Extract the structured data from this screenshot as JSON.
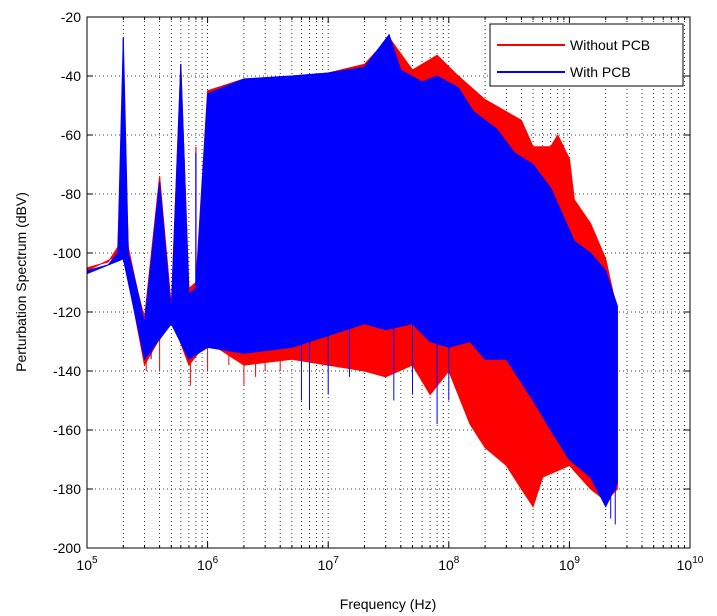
{
  "chart_data": {
    "type": "line",
    "xlabel": "Frequency (Hz)",
    "ylabel": "Perturbation Spectrum (dBV)",
    "x_scale": "log",
    "xlim": [
      100000,
      10000000000
    ],
    "ylim": [
      -200,
      -20
    ],
    "grid": true,
    "x_ticks": [
      {
        "value": 100000,
        "base": "10",
        "exp": "5"
      },
      {
        "value": 1000000,
        "base": "10",
        "exp": "6"
      },
      {
        "value": 10000000,
        "base": "10",
        "exp": "7"
      },
      {
        "value": 100000000,
        "base": "10",
        "exp": "8"
      },
      {
        "value": 1000000000,
        "base": "10",
        "exp": "9"
      },
      {
        "value": 10000000000,
        "base": "10",
        "exp": "10"
      }
    ],
    "y_ticks": [
      "-200",
      "-180",
      "-160",
      "-140",
      "-120",
      "-100",
      "-80",
      "-60",
      "-40",
      "-20"
    ],
    "legend_position": "top-right",
    "series": [
      {
        "name": "Without PCB",
        "color": "#ff0000",
        "upper": [
          [
            100000,
            -105
          ],
          [
            150000,
            -103
          ],
          [
            180000,
            -98
          ],
          [
            200000,
            -52
          ],
          [
            220000,
            -98
          ],
          [
            260000,
            -112
          ],
          [
            300000,
            -122
          ],
          [
            400000,
            -74
          ],
          [
            500000,
            -118
          ],
          [
            600000,
            -36
          ],
          [
            700000,
            -112
          ],
          [
            800000,
            -110
          ],
          [
            1000000,
            -45
          ],
          [
            2000000,
            -41
          ],
          [
            5000000,
            -40
          ],
          [
            10000000,
            -39
          ],
          [
            20000000,
            -36
          ],
          [
            32000000,
            -27
          ],
          [
            50000000,
            -38
          ],
          [
            80000000,
            -33
          ],
          [
            120000000,
            -40
          ],
          [
            200000000,
            -48
          ],
          [
            400000000,
            -55
          ],
          [
            500000000,
            -64
          ],
          [
            700000000,
            -64
          ],
          [
            800000000,
            -60
          ],
          [
            1000000000,
            -68
          ],
          [
            1100000000,
            -82
          ],
          [
            1500000000,
            -90
          ],
          [
            2000000000,
            -102
          ],
          [
            2500000000,
            -120
          ]
        ],
        "lower": [
          [
            100000,
            -106
          ],
          [
            200000,
            -100
          ],
          [
            300000,
            -138
          ],
          [
            500000,
            -122
          ],
          [
            700000,
            -138
          ],
          [
            1000000,
            -130
          ],
          [
            2000000,
            -138
          ],
          [
            5000000,
            -136
          ],
          [
            10000000,
            -138
          ],
          [
            20000000,
            -140
          ],
          [
            30000000,
            -142
          ],
          [
            50000000,
            -138
          ],
          [
            70000000,
            -148
          ],
          [
            100000000,
            -140
          ],
          [
            150000000,
            -158
          ],
          [
            200000000,
            -166
          ],
          [
            300000000,
            -172
          ],
          [
            400000000,
            -180
          ],
          [
            500000000,
            -186
          ],
          [
            600000000,
            -176
          ],
          [
            1000000000,
            -172
          ],
          [
            1500000000,
            -180
          ],
          [
            2000000000,
            -184
          ],
          [
            2500000000,
            -180
          ]
        ],
        "spikes": [
          [
            200000,
            -52
          ],
          [
            400000,
            -74
          ],
          [
            600000,
            -36
          ],
          [
            800000,
            -64
          ],
          [
            1000000,
            -45
          ],
          [
            1200000,
            -48
          ],
          [
            1400000,
            -55
          ],
          [
            1600000,
            -68
          ],
          [
            1800000,
            -72
          ],
          [
            2000000,
            -58
          ],
          [
            2200000,
            -66
          ],
          [
            2600000,
            -70
          ],
          [
            3000000,
            -60
          ],
          [
            3500000,
            -68
          ],
          [
            4000000,
            -70
          ],
          [
            5000000,
            -64
          ],
          [
            6000000,
            -66
          ],
          [
            7000000,
            -66
          ],
          [
            8000000,
            -70
          ],
          [
            9000000,
            -70
          ]
        ],
        "dips": [
          [
            310000,
            -140
          ],
          [
            400000,
            -140
          ],
          [
            720000,
            -145
          ],
          [
            1000000,
            -140
          ],
          [
            1500000,
            -138
          ],
          [
            2000000,
            -145
          ],
          [
            2500000,
            -142
          ],
          [
            3000000,
            -140
          ],
          [
            4000000,
            -140
          ],
          [
            500000000,
            -186
          ],
          [
            400000000,
            -180
          ],
          [
            150000000,
            -158
          ],
          [
            2000000000,
            -184
          ]
        ],
        "peaks": [
          [
            300000000,
            -112
          ],
          [
            350000000,
            -104
          ],
          [
            400000000,
            -108
          ]
        ]
      },
      {
        "name": "With PCB",
        "color": "#0000ff",
        "upper": [
          [
            100000,
            -106
          ],
          [
            150000,
            -104
          ],
          [
            180000,
            -100
          ],
          [
            200000,
            -27
          ],
          [
            220000,
            -100
          ],
          [
            260000,
            -112
          ],
          [
            300000,
            -124
          ],
          [
            400000,
            -76
          ],
          [
            500000,
            -120
          ],
          [
            600000,
            -36
          ],
          [
            700000,
            -114
          ],
          [
            800000,
            -112
          ],
          [
            1000000,
            -46
          ],
          [
            2000000,
            -41
          ],
          [
            5000000,
            -40
          ],
          [
            10000000,
            -39
          ],
          [
            20000000,
            -37
          ],
          [
            32000000,
            -26
          ],
          [
            40000000,
            -38
          ],
          [
            60000000,
            -42
          ],
          [
            80000000,
            -40
          ],
          [
            120000000,
            -44
          ],
          [
            160000000,
            -52
          ],
          [
            250000000,
            -58
          ],
          [
            350000000,
            -66
          ],
          [
            500000000,
            -70
          ],
          [
            700000000,
            -78
          ],
          [
            900000000,
            -88
          ],
          [
            1100000000,
            -96
          ],
          [
            1500000000,
            -100
          ],
          [
            2000000000,
            -106
          ],
          [
            2500000000,
            -118
          ]
        ],
        "lower": [
          [
            100000,
            -107
          ],
          [
            200000,
            -102
          ],
          [
            300000,
            -136
          ],
          [
            500000,
            -124
          ],
          [
            700000,
            -136
          ],
          [
            1000000,
            -132
          ],
          [
            2000000,
            -134
          ],
          [
            5000000,
            -132
          ],
          [
            10000000,
            -128
          ],
          [
            20000000,
            -124
          ],
          [
            30000000,
            -126
          ],
          [
            50000000,
            -124
          ],
          [
            70000000,
            -130
          ],
          [
            100000000,
            -132
          ],
          [
            150000000,
            -130
          ],
          [
            200000000,
            -136
          ],
          [
            300000000,
            -136
          ],
          [
            500000000,
            -150
          ],
          [
            700000000,
            -160
          ],
          [
            1000000000,
            -170
          ],
          [
            1500000000,
            -176
          ],
          [
            2000000000,
            -186
          ],
          [
            2500000000,
            -178
          ]
        ],
        "spikes": [
          [
            200000,
            -27
          ],
          [
            400000,
            -76
          ],
          [
            600000,
            -36
          ],
          [
            800000,
            -66
          ],
          [
            1000000,
            -46
          ],
          [
            1200000,
            -50
          ],
          [
            1400000,
            -52
          ],
          [
            1600000,
            -64
          ],
          [
            1800000,
            -70
          ],
          [
            2000000,
            -60
          ],
          [
            2200000,
            -66
          ],
          [
            2600000,
            -68
          ],
          [
            3000000,
            -60
          ],
          [
            3500000,
            -66
          ],
          [
            4000000,
            -68
          ],
          [
            5000000,
            -62
          ]
        ],
        "dips": [
          [
            340000,
            -136
          ],
          [
            6000000,
            -150
          ],
          [
            7000000,
            -153
          ],
          [
            10000000,
            -148
          ],
          [
            15000000,
            -142
          ],
          [
            35000000,
            -150
          ],
          [
            50000000,
            -148
          ],
          [
            80000000,
            -158
          ],
          [
            100000000,
            -150
          ],
          [
            2400000000,
            -192
          ],
          [
            2200000000,
            -190
          ]
        ],
        "peaks": []
      }
    ]
  }
}
